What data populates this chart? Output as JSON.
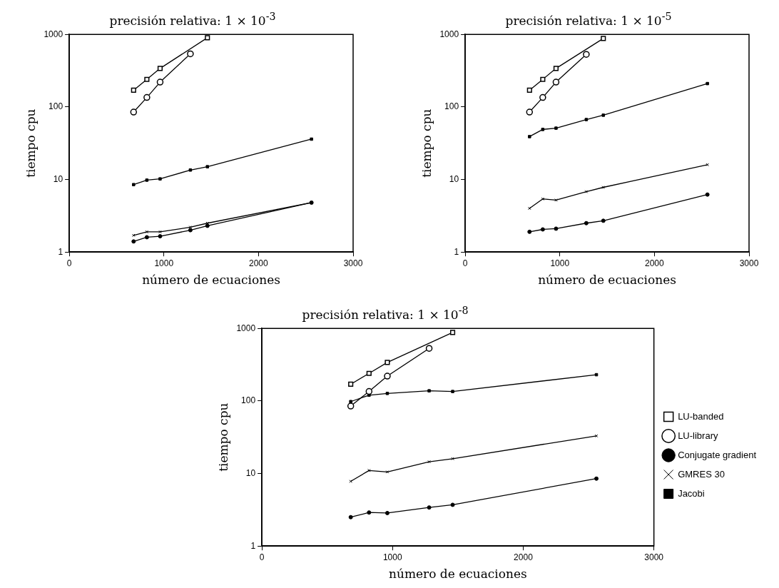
{
  "chart_data": [
    {
      "type": "line",
      "title": "precisión relativa:  1 × 10$^{-3}$",
      "xlabel": "número de ecuaciones",
      "ylabel": "tiempo cpu",
      "log": "y",
      "xlim": [
        0,
        3000
      ],
      "xticks": [
        0,
        1000,
        2000,
        3000
      ],
      "ylim": [
        1,
        1000
      ],
      "yticks": [
        1,
        10,
        100,
        1000
      ],
      "grid": false,
      "legend": false,
      "line_style": "solid",
      "series": [
        {
          "color": "#000000",
          "marker": "square",
          "x": [
            680,
            820,
            960,
            1460
          ],
          "values": [
            170,
            240,
            340,
            900
          ]
        },
        {
          "color": "#000000",
          "marker": "circle",
          "x": [
            680,
            820,
            960,
            1280
          ],
          "values": [
            85,
            135,
            220,
            540
          ]
        },
        {
          "color": "#000000",
          "marker": "circle",
          "x": [
            680,
            820,
            960,
            1280,
            1460,
            2560
          ],
          "values": [
            1.4,
            1.6,
            1.65,
            2.0,
            2.3,
            4.8
          ]
        },
        {
          "color": "#000000",
          "marker": "cross",
          "x": [
            680,
            820,
            960,
            1280,
            1460,
            2560
          ],
          "values": [
            1.7,
            1.9,
            1.9,
            2.2,
            2.5,
            4.8
          ]
        },
        {
          "color": "#000000",
          "marker": "square",
          "x": [
            680,
            820,
            960,
            1280,
            1460,
            2560
          ],
          "values": [
            8.5,
            9.8,
            10.2,
            13.5,
            15,
            36
          ]
        }
      ]
    },
    {
      "type": "line",
      "title": "precisión relativa:  1 × 10$^{-5}$",
      "xlabel": "número de ecuaciones",
      "ylabel": "tiempo cpu",
      "log": "y",
      "xlim": [
        0,
        3000
      ],
      "xticks": [
        0,
        1000,
        2000,
        3000
      ],
      "ylim": [
        1,
        1000
      ],
      "yticks": [
        1,
        10,
        100,
        1000
      ],
      "grid": false,
      "legend": false,
      "line_style": "solid",
      "series": [
        {
          "color": "#000000",
          "marker": "square",
          "x": [
            680,
            820,
            960,
            1460
          ],
          "values": [
            170,
            240,
            340,
            880
          ]
        },
        {
          "color": "#000000",
          "marker": "circle",
          "x": [
            680,
            820,
            960,
            1280
          ],
          "values": [
            85,
            135,
            220,
            530
          ]
        },
        {
          "color": "#000000",
          "marker": "circle",
          "x": [
            680,
            820,
            960,
            1280,
            1460,
            2560
          ],
          "values": [
            1.9,
            2.05,
            2.1,
            2.5,
            2.7,
            6.2
          ]
        },
        {
          "color": "#000000",
          "marker": "cross",
          "x": [
            680,
            820,
            960,
            1280,
            1460,
            2560
          ],
          "values": [
            4,
            5.4,
            5.2,
            6.8,
            7.8,
            16
          ]
        },
        {
          "color": "#000000",
          "marker": "square",
          "x": [
            680,
            820,
            960,
            1280,
            1460,
            2560
          ],
          "values": [
            39,
            49,
            51,
            67,
            77,
            210
          ]
        }
      ]
    },
    {
      "type": "line",
      "title": "precisión relativa:  1 × 10$^{-8}$",
      "xlabel": "número de ecuaciones",
      "ylabel": "tiempo cpu",
      "log": "y",
      "xlim": [
        0,
        3000
      ],
      "xticks": [
        0,
        1000,
        2000,
        3000
      ],
      "ylim": [
        1,
        1000
      ],
      "yticks": [
        1,
        10,
        100,
        1000
      ],
      "grid": false,
      "legend": "right",
      "line_style": "solid",
      "series": [
        {
          "name": "LU-banded",
          "color": "#000000",
          "marker": "square",
          "x": [
            680,
            820,
            960,
            1460
          ],
          "values": [
            170,
            240,
            340,
            880
          ]
        },
        {
          "name": "LU-library",
          "color": "#000000",
          "marker": "circle",
          "x": [
            680,
            820,
            960,
            1280
          ],
          "values": [
            85,
            135,
            220,
            530
          ]
        },
        {
          "name": "Conjugate gradient",
          "color": "#000000",
          "marker": "circle",
          "x": [
            680,
            820,
            960,
            1280,
            1460,
            2560
          ],
          "values": [
            2.5,
            2.9,
            2.85,
            3.4,
            3.7,
            8.5
          ]
        },
        {
          "name": "GMRES 30",
          "color": "#000000",
          "marker": "cross",
          "x": [
            680,
            820,
            960,
            1280,
            1460,
            2560
          ],
          "values": [
            7.8,
            11,
            10.5,
            14.5,
            16,
            33
          ]
        },
        {
          "name": "Jacobi",
          "color": "#000000",
          "marker": "square",
          "x": [
            680,
            820,
            960,
            1280,
            1460,
            2560
          ],
          "values": [
            98,
            120,
            127,
            138,
            135,
            230
          ]
        }
      ]
    }
  ]
}
